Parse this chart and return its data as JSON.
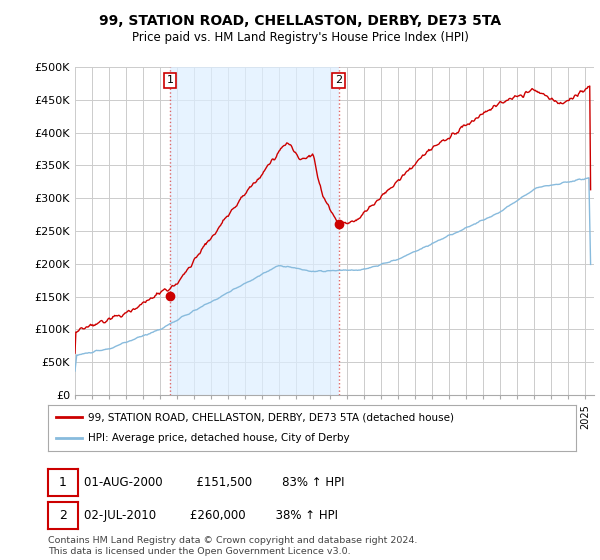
{
  "title": "99, STATION ROAD, CHELLASTON, DERBY, DE73 5TA",
  "subtitle": "Price paid vs. HM Land Registry's House Price Index (HPI)",
  "ylabel_ticks": [
    "£0",
    "£50K",
    "£100K",
    "£150K",
    "£200K",
    "£250K",
    "£300K",
    "£350K",
    "£400K",
    "£450K",
    "£500K"
  ],
  "yticks": [
    0,
    50000,
    100000,
    150000,
    200000,
    250000,
    300000,
    350000,
    400000,
    450000,
    500000
  ],
  "ylim": [
    0,
    500000
  ],
  "xlim_start": 1995.0,
  "xlim_end": 2025.5,
  "marker1_x": 2000.583,
  "marker1_y": 151500,
  "marker2_x": 2010.5,
  "marker2_y": 260000,
  "legend_line1": "99, STATION ROAD, CHELLASTON, DERBY, DE73 5TA (detached house)",
  "legend_line2": "HPI: Average price, detached house, City of Derby",
  "footer": "Contains HM Land Registry data © Crown copyright and database right 2024.\nThis data is licensed under the Open Government Licence v3.0.",
  "line_color_red": "#cc0000",
  "line_color_blue": "#88bbdd",
  "shade_color": "#ddeeff",
  "background_color": "#ffffff",
  "grid_color": "#cccccc",
  "vline_color": "#dd6666"
}
